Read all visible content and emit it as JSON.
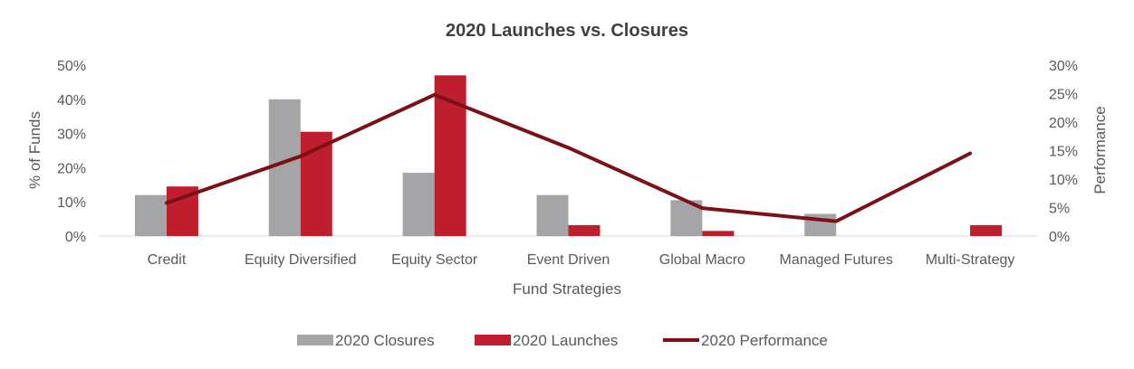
{
  "chart_data": {
    "type": "bar",
    "title": "2020 Launches vs. Closures",
    "xlabel": "Fund Strategies",
    "ylabel": "% of Funds",
    "y2label": "Performance",
    "categories": [
      "Credit",
      "Equity Diversified",
      "Equity Sector",
      "Event Driven",
      "Global Macro",
      "Managed Futures",
      "Multi-Strategy"
    ],
    "ylim": [
      0,
      50
    ],
    "y2lim": [
      0,
      30
    ],
    "yticks": [
      "0%",
      "10%",
      "20%",
      "30%",
      "40%",
      "50%"
    ],
    "y2ticks": [
      "0%",
      "5%",
      "10%",
      "15%",
      "20%",
      "25%",
      "30%"
    ],
    "grid": false,
    "legend_position": "bottom",
    "series": [
      {
        "name": "2020 Closures",
        "type": "bar",
        "axis": "left",
        "color": "#a5a5a7",
        "values": [
          12,
          40,
          18.5,
          12,
          10.5,
          6.5,
          0
        ]
      },
      {
        "name": "2020 Launches",
        "type": "bar",
        "axis": "left",
        "color": "#be1e2d",
        "values": [
          14.5,
          30.5,
          47,
          3.2,
          1.5,
          0,
          3.2
        ]
      },
      {
        "name": "2020 Performance",
        "type": "line",
        "axis": "right",
        "color": "#7b1019",
        "values": [
          5.8,
          14,
          24.8,
          15.5,
          4.9,
          2.6,
          14.5
        ]
      }
    ]
  }
}
